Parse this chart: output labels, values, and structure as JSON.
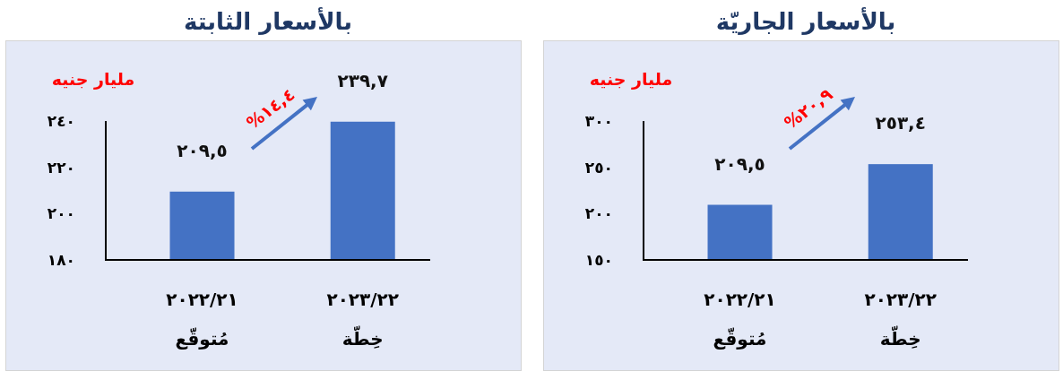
{
  "chart_data": [
    {
      "type": "bar",
      "title": "بالأسعار الجاريّة",
      "ylabel": "مليار جنيه",
      "categories": [
        "٢٠٢٢/٢١ مُتوقّع",
        "٢٠٢٣/٢٢ خِطّة"
      ],
      "values": [
        209.5,
        253.4
      ],
      "value_labels": [
        "٢٠٩,٥",
        "٢٥٣,٤"
      ],
      "color": "#4472c4",
      "ylim": [
        150,
        300
      ],
      "yticks": [
        {
          "value": 150,
          "label": "١٥٠"
        },
        {
          "value": 200,
          "label": "٢٠٠"
        },
        {
          "value": 250,
          "label": "٢٥٠"
        },
        {
          "value": 300,
          "label": "٣٠٠"
        }
      ],
      "annotations": [
        "٢٠,٩%"
      ]
    },
    {
      "type": "bar",
      "title": "بالأسعار الثابتة",
      "ylabel": "مليار جنيه",
      "categories": [
        "٢٠٢٢/٢١ مُتوقّع",
        "٢٠٢٣/٢٢ خِطّة"
      ],
      "values": [
        209.5,
        239.7
      ],
      "value_labels": [
        "٢٠٩,٥",
        "٢٣٩,٧"
      ],
      "color": "#4472c4",
      "ylim": [
        180,
        240
      ],
      "yticks": [
        {
          "value": 180,
          "label": "١٨٠"
        },
        {
          "value": 200,
          "label": "٢٠٠"
        },
        {
          "value": 220,
          "label": "٢٢٠"
        },
        {
          "value": 240,
          "label": "٢٤٠"
        }
      ],
      "annotations": [
        "١٤,٤%"
      ]
    }
  ]
}
